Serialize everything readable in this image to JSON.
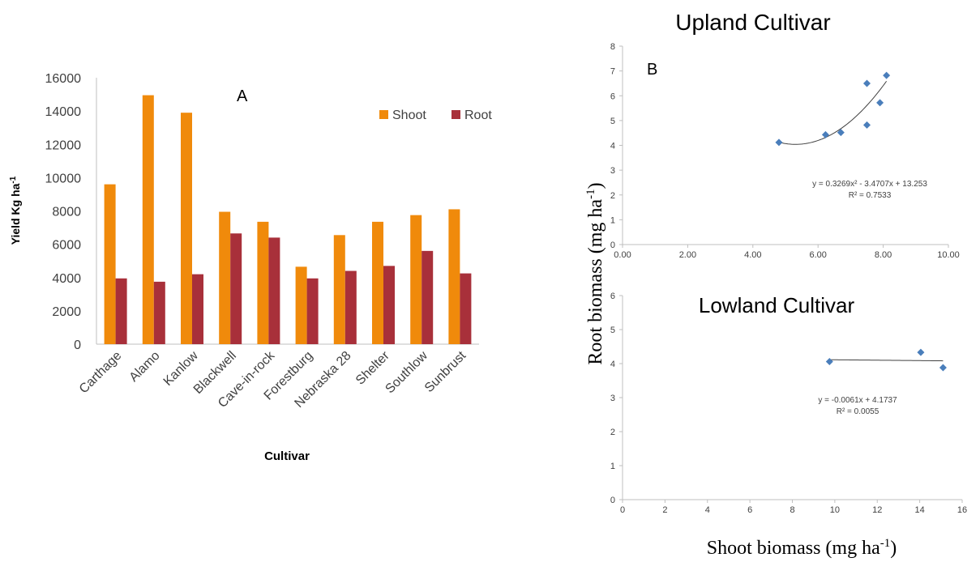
{
  "chart_data": [
    {
      "type": "bar",
      "panel_label": "A",
      "categories": [
        "Carthage",
        "Alamo",
        "Kanlow",
        "Blackwell",
        "Cave-in-rock",
        "Forestburg",
        "Nebraska 28",
        "Shelter",
        "Southlow",
        "Sunbrust"
      ],
      "series": [
        {
          "name": "Shoot",
          "color": "#f08a0b",
          "values": [
            9600,
            14950,
            13900,
            7950,
            7350,
            4650,
            6550,
            7350,
            7750,
            8100
          ]
        },
        {
          "name": "Root",
          "color": "#a8303a",
          "values": [
            3950,
            3750,
            4200,
            6650,
            6400,
            3950,
            4400,
            4700,
            5600,
            4250
          ]
        }
      ],
      "ylabel": "Yield Kg ha",
      "ylabel_sup": "-1",
      "xlabel": "Cultivar",
      "ylim": [
        0,
        16000
      ],
      "yticks": [
        "0",
        "2000",
        "4000",
        "6000",
        "8000",
        "10000",
        "12000",
        "14000",
        "16000"
      ],
      "legend_position": "top-right",
      "grid": false
    },
    {
      "type": "scatter",
      "panel_label": "B",
      "title": "Upland Cultivar",
      "points": [
        {
          "x": 4.8,
          "y": 4.12
        },
        {
          "x": 6.23,
          "y": 4.43
        },
        {
          "x": 6.7,
          "y": 4.52
        },
        {
          "x": 7.5,
          "y": 6.5
        },
        {
          "x": 7.5,
          "y": 4.82
        },
        {
          "x": 7.9,
          "y": 5.72
        },
        {
          "x": 8.1,
          "y": 6.82
        }
      ],
      "trendline": {
        "type": "polynomial",
        "a": 0.3269,
        "b": -3.4707,
        "c": 13.253,
        "x_range": [
          4.8,
          8.1
        ]
      },
      "equation": "y = 0.3269x² - 3.4707x + 13.253",
      "r2": "R² = 0.7533",
      "xlim": [
        0,
        10
      ],
      "ylim": [
        0,
        8
      ],
      "xticks": [
        "0.00",
        "2.00",
        "4.00",
        "6.00",
        "8.00",
        "10.00"
      ],
      "yticks": [
        "0",
        "1",
        "2",
        "3",
        "4",
        "5",
        "6",
        "7",
        "8"
      ],
      "marker_color": "#4a7ebb",
      "grid": false
    },
    {
      "type": "scatter",
      "title": "Lowland Cultivar",
      "points": [
        {
          "x": 9.75,
          "y": 4.06
        },
        {
          "x": 14.05,
          "y": 4.33
        },
        {
          "x": 15.1,
          "y": 3.88
        }
      ],
      "trendline": {
        "type": "linear",
        "slope": -0.0061,
        "intercept": 4.1737,
        "x_range": [
          9.75,
          15.1
        ]
      },
      "equation": "y = -0.0061x + 4.1737",
      "r2": "R² = 0.0055",
      "xlim": [
        0,
        16
      ],
      "ylim": [
        0,
        6
      ],
      "xticks": [
        "0",
        "2",
        "4",
        "6",
        "8",
        "10",
        "12",
        "14",
        "16"
      ],
      "yticks": [
        "0",
        "1",
        "2",
        "3",
        "4",
        "5",
        "6"
      ],
      "marker_color": "#4a7ebb",
      "grid": false
    }
  ],
  "shared": {
    "ylabel": "Root  biomass  (mg ha",
    "ylabel_sup": "-1",
    "ylabel_end": ")",
    "xlabel": "Shoot  biomass  (mg ha",
    "xlabel_sup": "-1",
    "xlabel_end": ")"
  }
}
